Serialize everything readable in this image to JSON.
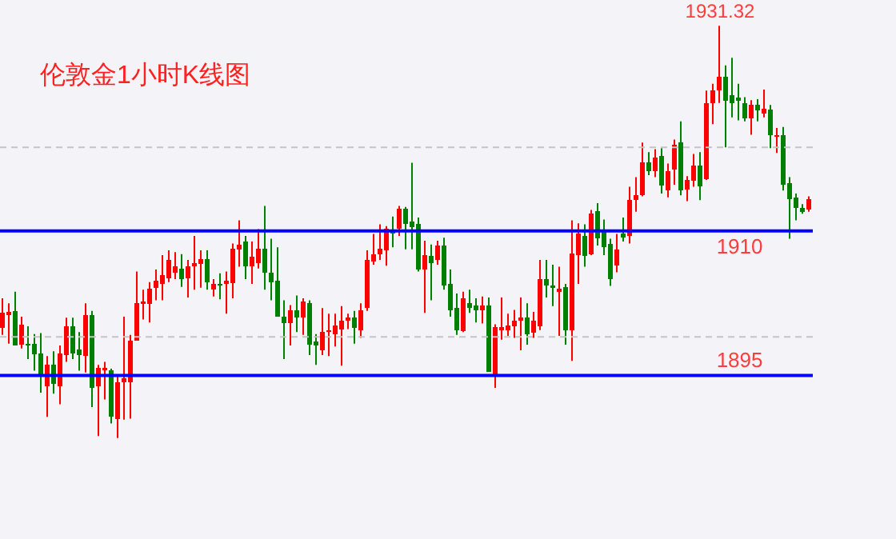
{
  "chart_data": {
    "type": "candlestick",
    "title": "伦敦金1小时K线图",
    "categories": [
      null,
      null,
      null,
      null,
      null,
      null,
      null,
      null,
      null,
      null,
      null,
      null,
      null,
      null,
      null,
      null,
      null,
      null,
      null,
      null,
      null,
      null,
      null,
      null,
      null,
      null,
      null,
      null,
      null,
      null,
      null,
      null,
      null,
      null,
      null,
      null,
      null,
      null,
      null,
      null,
      null,
      null,
      null,
      null,
      null,
      null,
      null,
      null,
      null,
      null,
      null,
      null,
      null,
      null,
      null,
      null,
      null,
      null,
      null,
      null,
      null,
      null,
      null,
      null,
      null,
      null,
      null,
      null,
      null,
      null,
      null,
      null,
      null,
      null,
      null,
      null,
      null,
      null,
      null,
      null,
      null,
      null,
      null,
      null,
      null,
      null,
      null,
      null,
      null,
      null,
      null,
      null,
      null,
      null,
      null,
      null,
      null,
      null,
      null,
      null,
      null,
      null,
      null,
      null,
      null,
      null,
      null,
      null,
      null,
      null,
      null,
      null,
      null,
      null,
      null,
      null,
      null,
      null,
      null,
      null,
      null,
      null,
      null,
      null,
      null,
      null,
      null
    ],
    "ohlc": [
      [
        1899.9,
        1903.0,
        1899.2,
        1901.5
      ],
      [
        1901.3,
        1902.5,
        1898.3,
        1901.6
      ],
      [
        1901.7,
        1903.7,
        1898.1,
        1898.1
      ],
      [
        1898.2,
        1901.1,
        1897.8,
        1900.3
      ],
      [
        1898.3,
        1900.1,
        1896.7,
        1898.1
      ],
      [
        1898.3,
        1899.3,
        1895.5,
        1897.2
      ],
      [
        1897.3,
        1899.4,
        1893.2,
        1894.9
      ],
      [
        1893.9,
        1897.0,
        1890.7,
        1896.1
      ],
      [
        1896.1,
        1897.5,
        1893.1,
        1894.1
      ],
      [
        1893.9,
        1898.1,
        1892.0,
        1897.3
      ],
      [
        1897.1,
        1901.0,
        1896.4,
        1900.1
      ],
      [
        1900.1,
        1901.0,
        1896.7,
        1897.3
      ],
      [
        1897.7,
        1899.5,
        1895.5,
        1897.1
      ],
      [
        1897.0,
        1902.5,
        1895.3,
        1901.3
      ],
      [
        1901.3,
        1901.7,
        1891.7,
        1893.7
      ],
      [
        1893.9,
        1896.1,
        1888.7,
        1895.8
      ],
      [
        1895.5,
        1896.4,
        1892.5,
        1895.8
      ],
      [
        1895.5,
        1895.7,
        1890.0,
        1890.7
      ],
      [
        1890.5,
        1895.0,
        1888.5,
        1894.3
      ],
      [
        1894.3,
        1901.1,
        1890.4,
        1894.7
      ],
      [
        1894.3,
        1899.2,
        1890.5,
        1898.6
      ],
      [
        1898.6,
        1905.8,
        1898.6,
        1902.5
      ],
      [
        1902.4,
        1903.9,
        1900.8,
        1902.7
      ],
      [
        1902.4,
        1904.7,
        1900.5,
        1904.0
      ],
      [
        1904.1,
        1906.0,
        1902.8,
        1904.8
      ],
      [
        1904.5,
        1907.5,
        1902.8,
        1905.4
      ],
      [
        1905.1,
        1908.0,
        1904.7,
        1907.0
      ],
      [
        1905.7,
        1907.8,
        1905.0,
        1906.3
      ],
      [
        1906.1,
        1907.6,
        1904.2,
        1905.0
      ],
      [
        1905.1,
        1907.0,
        1903.1,
        1906.3
      ],
      [
        1906.3,
        1909.5,
        1903.9,
        1906.7
      ],
      [
        1906.6,
        1908.0,
        1904.1,
        1907.1
      ],
      [
        1907.1,
        1908.0,
        1903.9,
        1904.7
      ],
      [
        1903.9,
        1905.0,
        1903.2,
        1904.5
      ],
      [
        1904.5,
        1905.6,
        1902.9,
        1904.3
      ],
      [
        1904.5,
        1905.8,
        1901.4,
        1904.8
      ],
      [
        1904.6,
        1908.7,
        1903.0,
        1908.2
      ],
      [
        1908.1,
        1911.1,
        1906.3,
        1908.6
      ],
      [
        1908.9,
        1909.5,
        1905.0,
        1906.3
      ],
      [
        1906.3,
        1908.9,
        1904.5,
        1907.3
      ],
      [
        1906.7,
        1910.2,
        1906.1,
        1908.2
      ],
      [
        1908.2,
        1912.6,
        1903.9,
        1905.7
      ],
      [
        1905.7,
        1909.2,
        1902.8,
        1904.7
      ],
      [
        1904.8,
        1908.3,
        1901.1,
        1901.1
      ],
      [
        1901.1,
        1902.8,
        1896.7,
        1900.4
      ],
      [
        1900.4,
        1902.3,
        1898.1,
        1901.8
      ],
      [
        1901.8,
        1903.3,
        1899.5,
        1901.0
      ],
      [
        1901.0,
        1903.0,
        1899.2,
        1902.7
      ],
      [
        1902.5,
        1902.8,
        1897.1,
        1898.2
      ],
      [
        1898.5,
        1899.3,
        1896.1,
        1898.1
      ],
      [
        1897.6,
        1902.0,
        1897.1,
        1899.5
      ],
      [
        1899.6,
        1901.4,
        1897.0,
        1899.7
      ],
      [
        1899.3,
        1901.4,
        1898.0,
        1900.2
      ],
      [
        1899.8,
        1902.2,
        1896.0,
        1900.7
      ],
      [
        1900.7,
        1901.4,
        1899.8,
        1901.0
      ],
      [
        1901.0,
        1901.7,
        1898.3,
        1899.9
      ],
      [
        1899.7,
        1902.5,
        1898.9,
        1901.8
      ],
      [
        1902.0,
        1908.0,
        1901.7,
        1907.0
      ],
      [
        1906.8,
        1909.7,
        1906.5,
        1907.6
      ],
      [
        1907.6,
        1910.7,
        1907.0,
        1908.2
      ],
      [
        1908.0,
        1910.5,
        1906.4,
        1910.2
      ],
      [
        1910.0,
        1911.5,
        1908.3,
        1909.7
      ],
      [
        1910.2,
        1912.6,
        1909.5,
        1912.3
      ],
      [
        1912.3,
        1912.5,
        1908.1,
        1910.7
      ],
      [
        1911.0,
        1917.1,
        1908.1,
        1910.4
      ],
      [
        1910.7,
        1911.4,
        1905.8,
        1906.0
      ],
      [
        1906.0,
        1909.0,
        1901.5,
        1907.5
      ],
      [
        1907.4,
        1908.6,
        1902.8,
        1906.7
      ],
      [
        1907.0,
        1909.0,
        1906.5,
        1908.5
      ],
      [
        1908.5,
        1909.3,
        1903.9,
        1904.3
      ],
      [
        1904.5,
        1906.0,
        1901.1,
        1901.8
      ],
      [
        1902.0,
        1903.5,
        1899.2,
        1899.7
      ],
      [
        1899.6,
        1903.7,
        1899.5,
        1903.0
      ],
      [
        1902.5,
        1903.9,
        1901.5,
        1902.0
      ],
      [
        1902.3,
        1903.0,
        1900.5,
        1901.8
      ],
      [
        1901.8,
        1903.2,
        1900.4,
        1902.3
      ],
      [
        1902.3,
        1903.1,
        1895.4,
        1895.4
      ],
      [
        1895.0,
        1900.3,
        1893.7,
        1900.0
      ],
      [
        1899.7,
        1903.1,
        1898.7,
        1900.0
      ],
      [
        1899.7,
        1901.4,
        1899.1,
        1900.2
      ],
      [
        1900.1,
        1901.8,
        1898.9,
        1900.7
      ],
      [
        1900.7,
        1903.1,
        1897.6,
        1901.0
      ],
      [
        1901.0,
        1902.5,
        1898.2,
        1899.3
      ],
      [
        1899.4,
        1901.6,
        1898.9,
        1900.7
      ],
      [
        1900.1,
        1907.0,
        1899.7,
        1905.0
      ],
      [
        1905.0,
        1907.0,
        1903.1,
        1904.3
      ],
      [
        1904.3,
        1906.5,
        1902.2,
        1904.1
      ],
      [
        1903.7,
        1906.3,
        1899.1,
        1904.0
      ],
      [
        1904.2,
        1904.5,
        1898.2,
        1899.7
      ],
      [
        1899.7,
        1911.1,
        1896.5,
        1907.7
      ],
      [
        1907.5,
        1910.8,
        1904.5,
        1909.7
      ],
      [
        1909.5,
        1910.7,
        1906.3,
        1907.4
      ],
      [
        1907.6,
        1912.2,
        1907.5,
        1911.8
      ],
      [
        1912.1,
        1912.9,
        1908.5,
        1909.2
      ],
      [
        1910.0,
        1911.2,
        1907.5,
        1908.3
      ],
      [
        1908.7,
        1909.2,
        1904.3,
        1905.0
      ],
      [
        1906.4,
        1909.7,
        1905.7,
        1908.1
      ],
      [
        1909.7,
        1911.4,
        1908.9,
        1909.3
      ],
      [
        1909.5,
        1914.6,
        1908.7,
        1913.2
      ],
      [
        1913.2,
        1915.6,
        1912.0,
        1913.7
      ],
      [
        1913.7,
        1919.2,
        1913.6,
        1917.1
      ],
      [
        1917.1,
        1918.2,
        1915.8,
        1916.2
      ],
      [
        1916.2,
        1918.5,
        1915.6,
        1917.6
      ],
      [
        1917.8,
        1918.6,
        1913.9,
        1914.7
      ],
      [
        1914.2,
        1917.0,
        1913.5,
        1916.2
      ],
      [
        1916.4,
        1919.5,
        1914.8,
        1919.0
      ],
      [
        1919.2,
        1921.4,
        1913.7,
        1914.2
      ],
      [
        1914.3,
        1915.7,
        1913.1,
        1915.3
      ],
      [
        1915.2,
        1918.0,
        1914.6,
        1916.8
      ],
      [
        1916.8,
        1918.2,
        1913.2,
        1914.6
      ],
      [
        1915.4,
        1924.6,
        1915.3,
        1923.3
      ],
      [
        1923.3,
        1925.3,
        1921.1,
        1924.6
      ],
      [
        1924.6,
        1931.32,
        1923.3,
        1926.0
      ],
      [
        1926.0,
        1927.2,
        1918.7,
        1923.5
      ],
      [
        1924.1,
        1928.0,
        1921.8,
        1923.3
      ],
      [
        1923.9,
        1925.3,
        1921.5,
        1923.5
      ],
      [
        1923.3,
        1923.9,
        1921.4,
        1921.7
      ],
      [
        1921.7,
        1923.6,
        1920.0,
        1923.1
      ],
      [
        1923.1,
        1923.7,
        1921.4,
        1922.5
      ],
      [
        1922.2,
        1924.7,
        1921.8,
        1922.7
      ],
      [
        1922.6,
        1923.1,
        1918.6,
        1920.0
      ],
      [
        1919.8,
        1920.7,
        1918.1,
        1920.0
      ],
      [
        1920.0,
        1920.8,
        1914.2,
        1914.8
      ],
      [
        1915.0,
        1915.6,
        1909.2,
        1913.3
      ],
      [
        1913.5,
        1913.9,
        1911.1,
        1912.4
      ],
      [
        1912.4,
        1912.8,
        1911.8,
        1912.0
      ],
      [
        1912.2,
        1913.6,
        1912.0,
        1913.3
      ]
    ],
    "ylim": [
      1878,
      1934
    ],
    "ref_lines": [
      {
        "axis": "y",
        "value": 1910,
        "label": "1910",
        "color": "#0000ff",
        "line_style": "solid"
      },
      {
        "axis": "y",
        "value": 1895,
        "label": "1895",
        "color": "#0000ff",
        "line_style": "solid"
      },
      {
        "axis": "y",
        "value": 1918.7,
        "color": "#c4c4c4",
        "line_style": "dashed"
      },
      {
        "axis": "y",
        "value": 1899.0,
        "color": "#c4c4c4",
        "line_style": "dashed"
      }
    ],
    "annotations": [
      {
        "text": "1931.32",
        "y": 1931.32
      }
    ]
  }
}
